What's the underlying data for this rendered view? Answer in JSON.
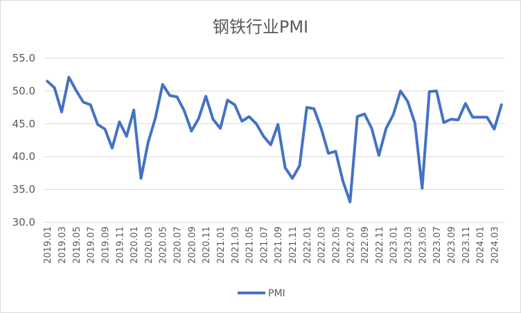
{
  "chart_data": {
    "type": "line",
    "title": "钢铁行业PMI",
    "xlabel": "",
    "ylabel": "",
    "ylim": [
      30.0,
      55.0
    ],
    "yticks": [
      "30.0",
      "35.0",
      "40.0",
      "45.0",
      "50.0",
      "55.0"
    ],
    "grid": true,
    "legend": "bottom",
    "xtick_labels": [
      "2019.01",
      "2019.03",
      "2019.05",
      "2019.07",
      "2019.09",
      "2019.11",
      "2020.01",
      "2020.03",
      "2020.05",
      "2020.07",
      "2020.09",
      "2020.11",
      "2021.01",
      "2021.03",
      "2021.05",
      "2021.07",
      "2021.09",
      "2021.11",
      "2022.01",
      "2022.03",
      "2022.05",
      "2022.07",
      "2022.09",
      "2022.11",
      "2023.01",
      "2023.03",
      "2023.05",
      "2023.07",
      "2023.09",
      "2023.11",
      "2024.01",
      "2024.03"
    ],
    "categories": [
      "2019.01",
      "2019.02",
      "2019.03",
      "2019.04",
      "2019.05",
      "2019.06",
      "2019.07",
      "2019.08",
      "2019.09",
      "2019.10",
      "2019.11",
      "2019.12",
      "2020.01",
      "2020.02",
      "2020.03",
      "2020.04",
      "2020.05",
      "2020.06",
      "2020.07",
      "2020.08",
      "2020.09",
      "2020.10",
      "2020.11",
      "2020.12",
      "2021.01",
      "2021.02",
      "2021.03",
      "2021.04",
      "2021.05",
      "2021.06",
      "2021.07",
      "2021.08",
      "2021.09",
      "2021.10",
      "2021.11",
      "2021.12",
      "2022.01",
      "2022.02",
      "2022.03",
      "2022.04",
      "2022.05",
      "2022.06",
      "2022.07",
      "2022.08",
      "2022.09",
      "2022.10",
      "2022.11",
      "2022.12",
      "2023.01",
      "2023.02",
      "2023.03",
      "2023.04",
      "2023.05",
      "2023.06",
      "2023.07",
      "2023.08",
      "2023.09",
      "2023.10",
      "2023.11",
      "2023.12",
      "2024.01",
      "2024.02",
      "2024.03",
      "2024.04"
    ],
    "series": [
      {
        "name": "PMI",
        "color": "#4472c4",
        "values": [
          51.5,
          50.5,
          46.8,
          52.1,
          50.1,
          48.3,
          47.9,
          44.9,
          44.2,
          41.3,
          45.3,
          43.1,
          47.1,
          36.7,
          42.2,
          45.9,
          51.0,
          49.3,
          49.1,
          47.0,
          43.9,
          45.8,
          49.2,
          45.7,
          44.3,
          48.6,
          47.9,
          45.4,
          46.1,
          45.0,
          43.1,
          41.8,
          44.9,
          38.3,
          36.7,
          38.6,
          47.5,
          47.3,
          44.3,
          40.5,
          40.8,
          36.3,
          33.1,
          46.1,
          46.5,
          44.3,
          40.2,
          44.3,
          46.4,
          50.0,
          48.4,
          45.1,
          35.2,
          49.9,
          50.0,
          45.2,
          45.7,
          45.6,
          48.1,
          46.0,
          46.0,
          46.0,
          44.2,
          47.9
        ]
      }
    ]
  }
}
